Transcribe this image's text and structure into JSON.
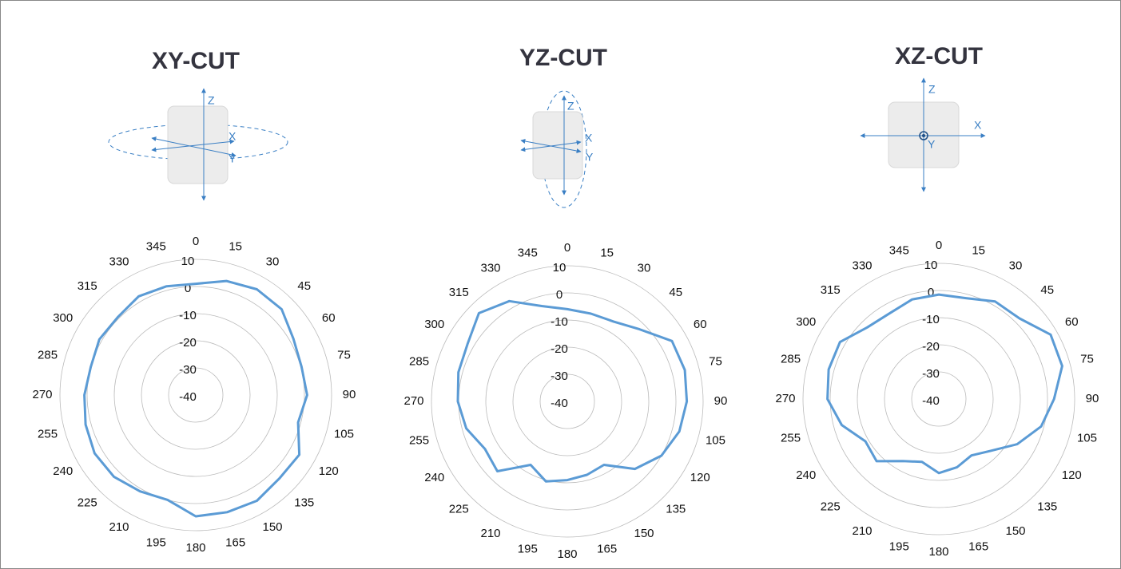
{
  "chart_data": [
    {
      "type": "polar",
      "title": "XY-CUT",
      "device_axes": [
        "Z",
        "X",
        "Y"
      ],
      "color": "#5b9bd5",
      "thetaticks": [
        0,
        15,
        30,
        45,
        60,
        75,
        90,
        105,
        120,
        135,
        150,
        165,
        180,
        195,
        210,
        225,
        240,
        255,
        270,
        285,
        300,
        315,
        330,
        345
      ],
      "rlim": [
        -40,
        10
      ],
      "rticks": [
        -40,
        -30,
        -20,
        -10,
        0,
        10
      ],
      "values": [
        1,
        3.5,
        5,
        4.7,
        1.5,
        0.3,
        1,
        -1,
        4,
        3.5,
        5,
        4.7,
        4.7,
        0,
        1,
        2.6,
        3,
        2,
        1,
        0,
        1,
        0.6,
        2,
        1.5
      ]
    },
    {
      "type": "polar",
      "title": "YZ-CUT",
      "device_axes": [
        "Z",
        "X",
        "Y"
      ],
      "color": "#5b9bd5",
      "thetaticks": [
        0,
        15,
        30,
        45,
        60,
        75,
        90,
        105,
        120,
        135,
        150,
        165,
        180,
        195,
        210,
        225,
        240,
        255,
        270,
        285,
        300,
        315,
        330,
        345
      ],
      "rlim": [
        -40,
        10
      ],
      "rticks": [
        -40,
        -30,
        -20,
        -10,
        0,
        10
      ],
      "values": [
        -6,
        -6.5,
        -6,
        -2.4,
        4.5,
        4.8,
        4,
        2.7,
        0,
        -4.8,
        -13,
        -12,
        -11,
        -9.5,
        -13,
        -3.6,
        -5,
        -1.5,
        0.3,
        1.5,
        2.4,
        6,
        2.7,
        -3.6
      ]
    },
    {
      "type": "polar",
      "title": "XZ-CUT",
      "device_axes": [
        "Z",
        "X",
        "Y"
      ],
      "color": "#5b9bd5",
      "thetaticks": [
        0,
        15,
        30,
        45,
        60,
        75,
        90,
        105,
        120,
        135,
        150,
        165,
        180,
        195,
        210,
        225,
        240,
        255,
        270,
        285,
        300,
        315,
        330,
        345
      ],
      "rlim": [
        -40,
        10
      ],
      "rticks": [
        -40,
        -30,
        -20,
        -10,
        0,
        10
      ],
      "values": [
        -1.5,
        -1.5,
        1.5,
        2,
        7.5,
        7,
        2.4,
        -1,
        -6.7,
        -13,
        -16,
        -14,
        -12.7,
        -16,
        -13.6,
        -7.6,
        -8.8,
        -3,
        1,
        2,
        2,
        -2.7,
        -3.6,
        -2
      ]
    }
  ]
}
